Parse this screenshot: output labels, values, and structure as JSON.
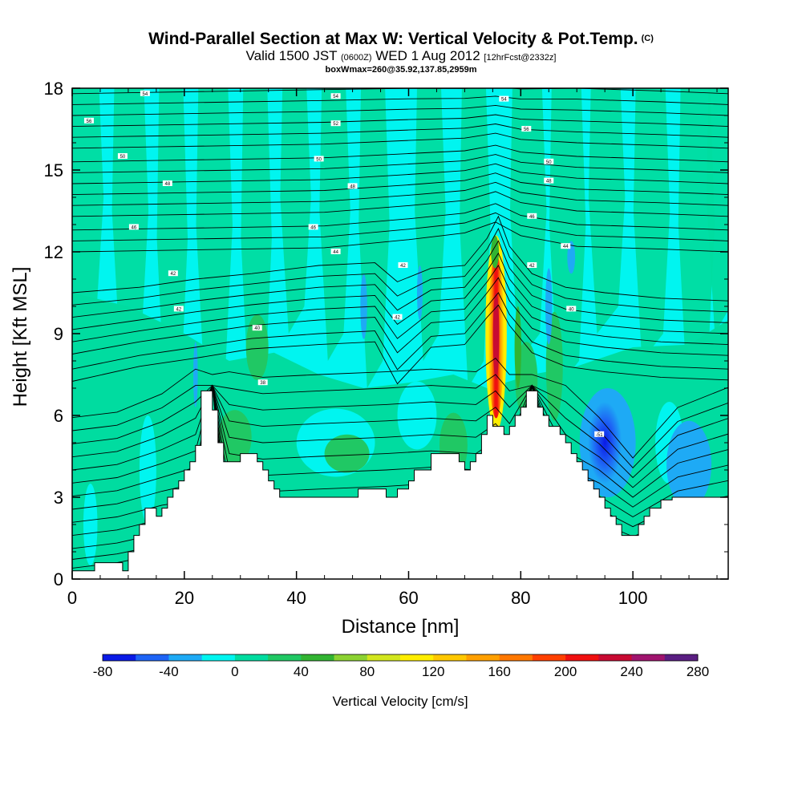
{
  "title": {
    "main": "Wind-Parallel Section at Max W: Vertical Velocity & Pot.Temp.",
    "copyright": "(C)",
    "valid_prefix": "Valid 1500 JST",
    "valid_utc": "(0600Z)",
    "valid_date": "WED 1 Aug 2012",
    "forecast": "[12hrFcst@2332z]",
    "box_info": "boxWmax=260@35.92,137.85,2959m"
  },
  "chart_data": {
    "type": "heatmap",
    "xlabel": "Distance [nm]",
    "ylabel": "Height [Kft MSL]",
    "xlim": [
      0,
      117
    ],
    "ylim": [
      0,
      18
    ],
    "x_ticks": [
      0,
      20,
      40,
      60,
      80,
      100
    ],
    "y_ticks": [
      0,
      3,
      6,
      9,
      12,
      15,
      18
    ],
    "colorbar": {
      "title": "Vertical Velocity [cm/s]",
      "levels": [
        -80,
        -60,
        -40,
        -20,
        0,
        20,
        40,
        60,
        80,
        100,
        120,
        140,
        160,
        180,
        200,
        220,
        240,
        260,
        280
      ],
      "tick_labels": [
        "-80",
        "-40",
        "0",
        "40",
        "80",
        "120",
        "160",
        "200",
        "240",
        "280"
      ],
      "colors": [
        "#0a1ae6",
        "#1e64f5",
        "#1eaaf5",
        "#00f5f0",
        "#00dca0",
        "#20c864",
        "#32b432",
        "#8cd232",
        "#d2e61e",
        "#ffee00",
        "#ffc800",
        "#ffa000",
        "#ff7800",
        "#ff4000",
        "#f01010",
        "#c80a32",
        "#a0146e",
        "#5a1e82"
      ]
    },
    "terrain": [
      [
        0,
        0.3
      ],
      [
        4,
        0.3
      ],
      [
        4,
        0.6
      ],
      [
        9,
        0.6
      ],
      [
        9,
        0.3
      ],
      [
        10,
        0.3
      ],
      [
        10,
        1.0
      ],
      [
        11,
        1.0
      ],
      [
        11,
        1.6
      ],
      [
        12,
        1.6
      ],
      [
        12,
        2.0
      ],
      [
        13,
        2.0
      ],
      [
        13,
        2.6
      ],
      [
        15,
        2.6
      ],
      [
        15,
        2.3
      ],
      [
        16,
        2.3
      ],
      [
        16,
        2.6
      ],
      [
        17,
        2.6
      ],
      [
        17,
        3.0
      ],
      [
        18,
        3.0
      ],
      [
        18,
        3.3
      ],
      [
        19,
        3.3
      ],
      [
        19,
        3.6
      ],
      [
        20,
        3.6
      ],
      [
        20,
        4.0
      ],
      [
        21,
        4.0
      ],
      [
        21,
        4.3
      ],
      [
        22,
        4.3
      ],
      [
        22,
        4.9
      ],
      [
        23,
        4.9
      ],
      [
        23,
        6.9
      ],
      [
        25,
        6.9
      ],
      [
        25,
        6.2
      ],
      [
        26,
        6.2
      ],
      [
        26,
        5.0
      ],
      [
        27,
        5.0
      ],
      [
        27,
        4.3
      ],
      [
        30,
        4.3
      ],
      [
        30,
        4.6
      ],
      [
        33,
        4.6
      ],
      [
        33,
        4.3
      ],
      [
        34,
        4.3
      ],
      [
        34,
        4.0
      ],
      [
        35,
        4.0
      ],
      [
        35,
        3.6
      ],
      [
        36,
        3.6
      ],
      [
        36,
        3.3
      ],
      [
        37,
        3.3
      ],
      [
        37,
        3.0
      ],
      [
        51,
        3.0
      ],
      [
        51,
        3.3
      ],
      [
        56,
        3.3
      ],
      [
        56,
        3.0
      ],
      [
        58,
        3.0
      ],
      [
        58,
        3.3
      ],
      [
        60,
        3.3
      ],
      [
        60,
        3.6
      ],
      [
        61,
        3.6
      ],
      [
        61,
        4.0
      ],
      [
        64,
        4.0
      ],
      [
        64,
        4.6
      ],
      [
        69,
        4.6
      ],
      [
        69,
        4.3
      ],
      [
        70,
        4.3
      ],
      [
        70,
        4.0
      ],
      [
        71,
        4.0
      ],
      [
        71,
        4.3
      ],
      [
        72,
        4.3
      ],
      [
        72,
        4.6
      ],
      [
        73,
        4.6
      ],
      [
        73,
        5.3
      ],
      [
        74,
        5.3
      ],
      [
        74,
        6.0
      ],
      [
        75,
        6.0
      ],
      [
        75,
        5.6
      ],
      [
        77,
        5.6
      ],
      [
        77,
        5.3
      ],
      [
        78,
        5.3
      ],
      [
        78,
        5.6
      ],
      [
        79,
        5.6
      ],
      [
        79,
        6.0
      ],
      [
        80,
        6.0
      ],
      [
        80,
        6.3
      ],
      [
        81,
        6.3
      ],
      [
        81,
        6.9
      ],
      [
        83,
        6.9
      ],
      [
        83,
        6.3
      ],
      [
        84,
        6.3
      ],
      [
        84,
        6.0
      ],
      [
        85,
        6.0
      ],
      [
        85,
        5.6
      ],
      [
        87,
        5.6
      ],
      [
        87,
        5.3
      ],
      [
        88,
        5.3
      ],
      [
        88,
        5.0
      ],
      [
        89,
        5.0
      ],
      [
        89,
        4.6
      ],
      [
        90,
        4.6
      ],
      [
        90,
        4.3
      ],
      [
        91,
        4.3
      ],
      [
        91,
        4.0
      ],
      [
        92,
        4.0
      ],
      [
        92,
        3.6
      ],
      [
        93,
        3.6
      ],
      [
        93,
        3.3
      ],
      [
        94,
        3.3
      ],
      [
        94,
        3.0
      ],
      [
        95,
        3.0
      ],
      [
        95,
        2.6
      ],
      [
        96,
        2.6
      ],
      [
        96,
        2.3
      ],
      [
        97,
        2.3
      ],
      [
        97,
        2.0
      ],
      [
        98,
        2.0
      ],
      [
        98,
        1.6
      ],
      [
        101,
        1.6
      ],
      [
        101,
        2.0
      ],
      [
        102,
        2.0
      ],
      [
        102,
        2.3
      ],
      [
        103,
        2.3
      ],
      [
        103,
        2.6
      ],
      [
        105,
        2.6
      ],
      [
        105,
        2.9
      ],
      [
        107,
        2.9
      ],
      [
        107,
        3.0
      ],
      [
        117,
        3.0
      ]
    ],
    "potential_temperature_labels": [
      {
        "x": 13,
        "y": 17.8,
        "text": "54"
      },
      {
        "x": 47,
        "y": 17.7,
        "text": "54"
      },
      {
        "x": 77,
        "y": 17.6,
        "text": "54"
      },
      {
        "x": 3,
        "y": 16.8,
        "text": "56"
      },
      {
        "x": 47,
        "y": 16.7,
        "text": "52"
      },
      {
        "x": 81,
        "y": 16.5,
        "text": "56"
      },
      {
        "x": 9,
        "y": 15.5,
        "text": "50"
      },
      {
        "x": 44,
        "y": 15.4,
        "text": "50"
      },
      {
        "x": 85,
        "y": 15.3,
        "text": "50"
      },
      {
        "x": 17,
        "y": 14.5,
        "text": "48"
      },
      {
        "x": 50,
        "y": 14.4,
        "text": "48"
      },
      {
        "x": 85,
        "y": 14.6,
        "text": "48"
      },
      {
        "x": 11,
        "y": 12.9,
        "text": "46"
      },
      {
        "x": 43,
        "y": 12.9,
        "text": "46"
      },
      {
        "x": 82,
        "y": 13.3,
        "text": "46"
      },
      {
        "x": 47,
        "y": 12.0,
        "text": "44"
      },
      {
        "x": 88,
        "y": 12.2,
        "text": "44"
      },
      {
        "x": 18,
        "y": 11.2,
        "text": "42"
      },
      {
        "x": 59,
        "y": 11.5,
        "text": "42"
      },
      {
        "x": 82,
        "y": 11.5,
        "text": "42"
      },
      {
        "x": 19,
        "y": 9.9,
        "text": "42"
      },
      {
        "x": 58,
        "y": 9.6,
        "text": "42"
      },
      {
        "x": 89,
        "y": 9.9,
        "text": "40"
      },
      {
        "x": 33,
        "y": 9.2,
        "text": "40"
      },
      {
        "x": 34,
        "y": 7.2,
        "text": "38"
      },
      {
        "x": 94,
        "y": 5.3,
        "text": "-51"
      }
    ]
  },
  "colors": {
    "plot_background": "#00f5f0",
    "terrain": "#ffffff"
  }
}
